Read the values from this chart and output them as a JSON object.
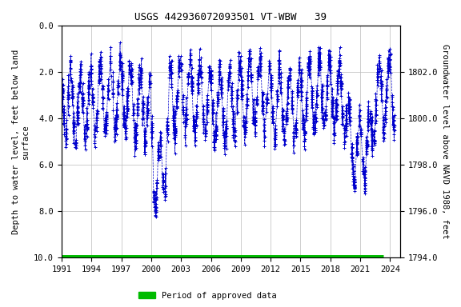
{
  "title": "USGS 442936072093501 VT-WBW   39",
  "ylabel_left": "Depth to water level, feet below land\nsurface",
  "ylabel_right": "Groundwater level above NAVD 1988, feet",
  "ylim_left": [
    10.0,
    0.0
  ],
  "ylim_right": [
    1794.0,
    1804.0
  ],
  "yticks_left": [
    0.0,
    2.0,
    4.0,
    6.0,
    8.0,
    10.0
  ],
  "yticks_right": [
    1794.0,
    1796.0,
    1798.0,
    1800.0,
    1802.0
  ],
  "xlim": [
    1991.0,
    2025.0
  ],
  "xticks": [
    1991,
    1994,
    1997,
    2000,
    2003,
    2006,
    2009,
    2012,
    2015,
    2018,
    2021,
    2024
  ],
  "data_color": "#0000cc",
  "marker": "+",
  "linestyle": "--",
  "linewidth": 0.5,
  "markersize": 2.5,
  "markeredgewidth": 0.7,
  "background_color": "#ffffff",
  "grid_color": "#bbbbbb",
  "title_fontsize": 9,
  "axis_fontsize": 7.5,
  "tick_fontsize": 7.5,
  "legend_label": "Period of approved data",
  "legend_color": "#00bb00",
  "approved_bar_y": 10.0,
  "approved_bar_x_start": 1991.0,
  "approved_bar_x_end": 2023.3,
  "approved_bar_linewidth": 5
}
